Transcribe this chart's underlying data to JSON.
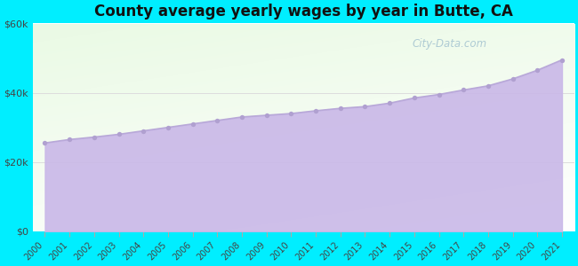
{
  "title": "County average yearly wages by year in Butte, CA",
  "years": [
    2000,
    2001,
    2002,
    2003,
    2004,
    2005,
    2006,
    2007,
    2008,
    2009,
    2010,
    2011,
    2012,
    2013,
    2014,
    2015,
    2016,
    2017,
    2018,
    2019,
    2020,
    2021
  ],
  "wages": [
    25500,
    26500,
    27200,
    28000,
    29000,
    30000,
    31000,
    32000,
    33000,
    33500,
    34000,
    34800,
    35500,
    36000,
    37000,
    38500,
    39500,
    40800,
    42000,
    44000,
    46500,
    49500
  ],
  "ylim": [
    0,
    60000
  ],
  "yticks": [
    0,
    20000,
    40000,
    60000
  ],
  "ytick_labels": [
    "$0",
    "$20k",
    "$40k",
    "$60k"
  ],
  "fill_color": "#c9b8e8",
  "line_color": "#b8a8d8",
  "marker_color": "#b0a0d0",
  "bg_outer": "#00eeff",
  "title_color": "#111111",
  "watermark": "City-Data.com",
  "xlabel_color": "#444444",
  "grid_color": "#dddddd"
}
